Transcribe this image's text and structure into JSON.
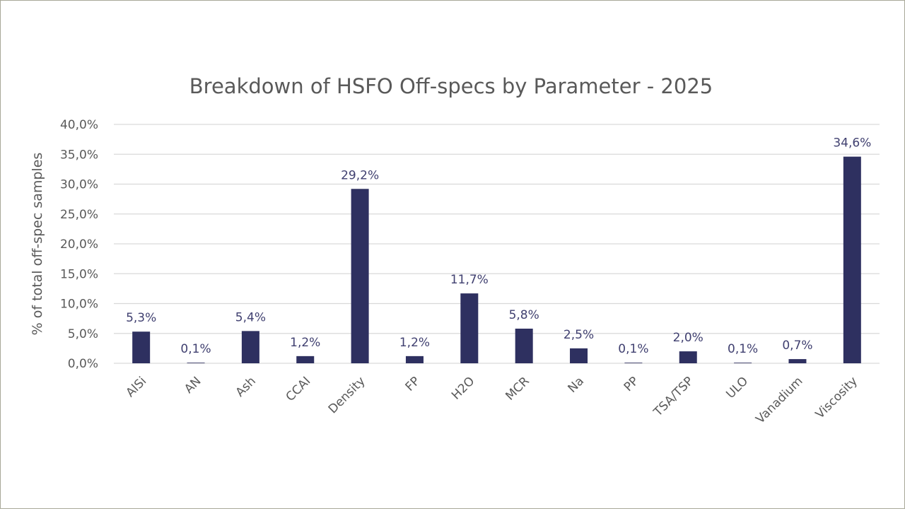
{
  "chart_data": {
    "type": "bar",
    "title": "Breakdown of HSFO Off-specs by Parameter - 2025",
    "xlabel": "",
    "ylabel": "% of total off-spec samples",
    "categories": [
      "AlSi",
      "AN",
      "Ash",
      "CCAI",
      "Density",
      "FP",
      "H2O",
      "MCR",
      "Na",
      "PP",
      "TSA/TSP",
      "ULO",
      "Vanadium",
      "Viscosity"
    ],
    "values": [
      5.3,
      0.1,
      5.4,
      1.2,
      29.2,
      1.2,
      11.7,
      5.8,
      2.5,
      0.1,
      2.0,
      0.1,
      0.7,
      34.6
    ],
    "data_labels": [
      "5,3%",
      "0,1%",
      "5,4%",
      "1,2%",
      "29,2%",
      "1,2%",
      "11,7%",
      "5,8%",
      "2,5%",
      "0,1%",
      "2,0%",
      "0,1%",
      "0,7%",
      "34,6%"
    ],
    "ylim": [
      0,
      40
    ],
    "yticks": [
      "0,0%",
      "5,0%",
      "10,0%",
      "15,0%",
      "20,0%",
      "25,0%",
      "30,0%",
      "35,0%",
      "40,0%"
    ],
    "grid": true,
    "legend": "none",
    "colors": {
      "bar": "#2e3060",
      "data_label": "#404070",
      "axis_text": "#595959",
      "grid": "#d9d9d9"
    }
  }
}
